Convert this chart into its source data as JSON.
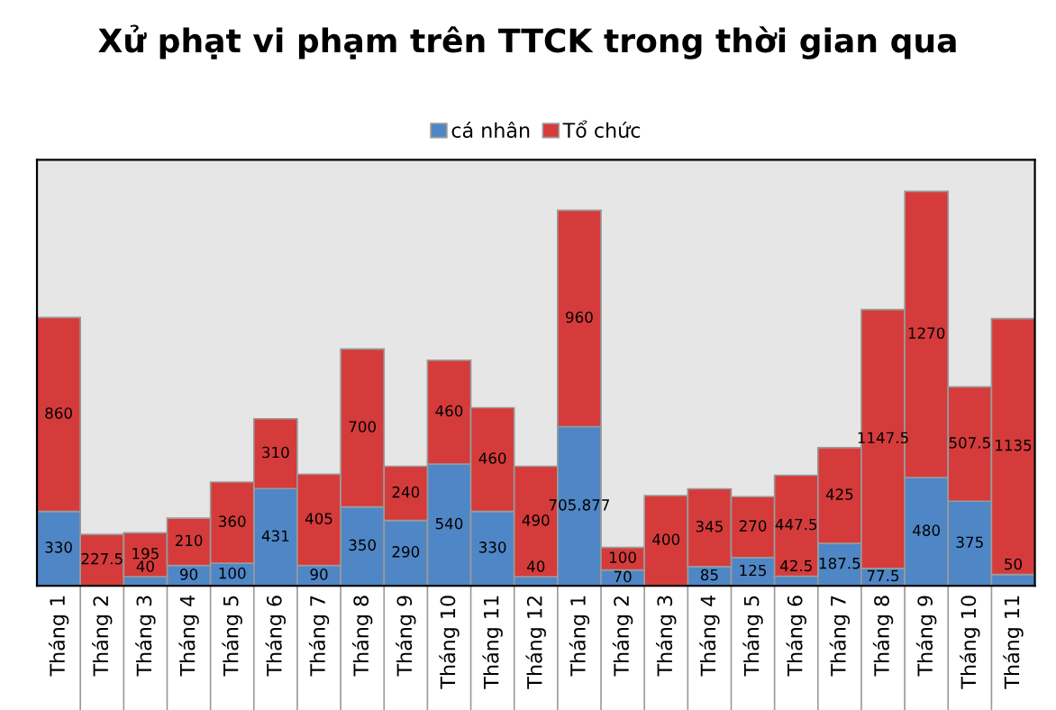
{
  "chart_data": {
    "type": "bar",
    "stacked": true,
    "title": "Xử phạt vi phạm trên TTCK trong thời gian qua",
    "categories": [
      "Tháng 1",
      "Tháng 2",
      "Tháng 3",
      "Tháng 4",
      "Tháng 5",
      "Tháng 6",
      "Tháng 7",
      "Tháng 8",
      "Tháng 9",
      "Tháng 10",
      "Tháng 11",
      "Tháng 12",
      "Tháng 1",
      "Tháng 2",
      "Tháng 3",
      "Tháng 4",
      "Tháng 5",
      "Tháng 6",
      "Tháng 7",
      "Tháng 8",
      "Tháng 9",
      "Tháng 10",
      "Tháng 11"
    ],
    "series": [
      {
        "name": "cá nhân",
        "color": "#4f86c6",
        "values": [
          330,
          null,
          40,
          90,
          100,
          431,
          90,
          350,
          290,
          540,
          330,
          40,
          705.877,
          70,
          null,
          85,
          125,
          42.5,
          187.5,
          77.5,
          480,
          375,
          50
        ]
      },
      {
        "name": "Tổ chức",
        "color": "#d63b3b",
        "values": [
          860,
          227.5,
          195,
          210,
          360,
          310,
          405,
          700,
          240,
          460,
          460,
          490,
          960,
          100,
          400,
          345,
          270,
          447.5,
          425,
          1147.5,
          1270,
          507.5,
          1135
        ]
      }
    ],
    "data_labels": true,
    "legend": "top",
    "tick_labels": "x",
    "grid": false
  }
}
